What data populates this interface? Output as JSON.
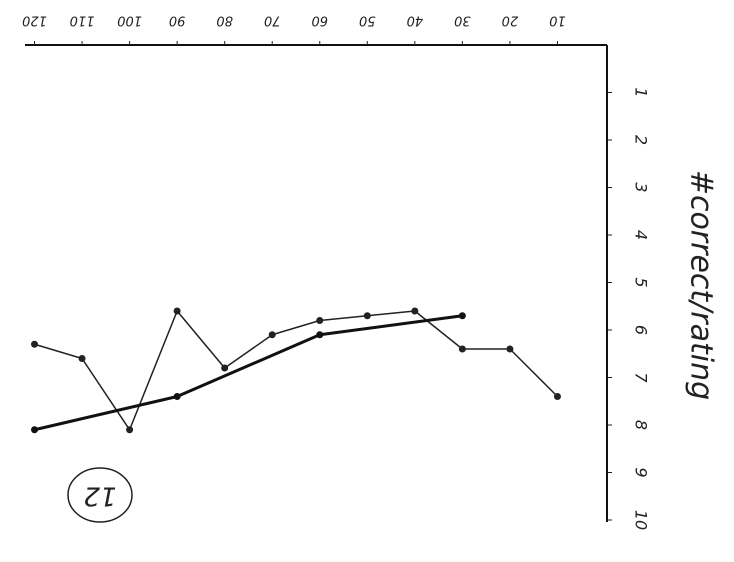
{
  "chart_data": {
    "type": "line",
    "y_label": "#correct/rating",
    "annotation": "12",
    "x_axis_position": "top",
    "y_axis_position": "right",
    "xlim": [
      122,
      0
    ],
    "xticks": [
      120,
      110,
      100,
      90,
      80,
      70,
      60,
      50,
      40,
      30,
      20,
      10
    ],
    "ylim": [
      0,
      10
    ],
    "yticks": [
      1,
      2,
      3,
      4,
      5,
      6,
      7,
      8,
      9,
      10
    ],
    "grid": false,
    "series": [
      {
        "color": "#222222",
        "width": 1.5,
        "x": [
          120,
          110,
          100,
          90,
          80,
          70,
          60,
          50,
          40,
          30,
          20,
          10
        ],
        "values": [
          6.3,
          6.6,
          8.1,
          5.6,
          6.8,
          6.1,
          5.8,
          5.7,
          5.6,
          6.4,
          6.4,
          7.4
        ]
      },
      {
        "color": "#111111",
        "width": 3,
        "x": [
          120,
          90,
          60,
          30
        ],
        "values": [
          8.1,
          7.4,
          6.1,
          5.7
        ]
      }
    ]
  }
}
